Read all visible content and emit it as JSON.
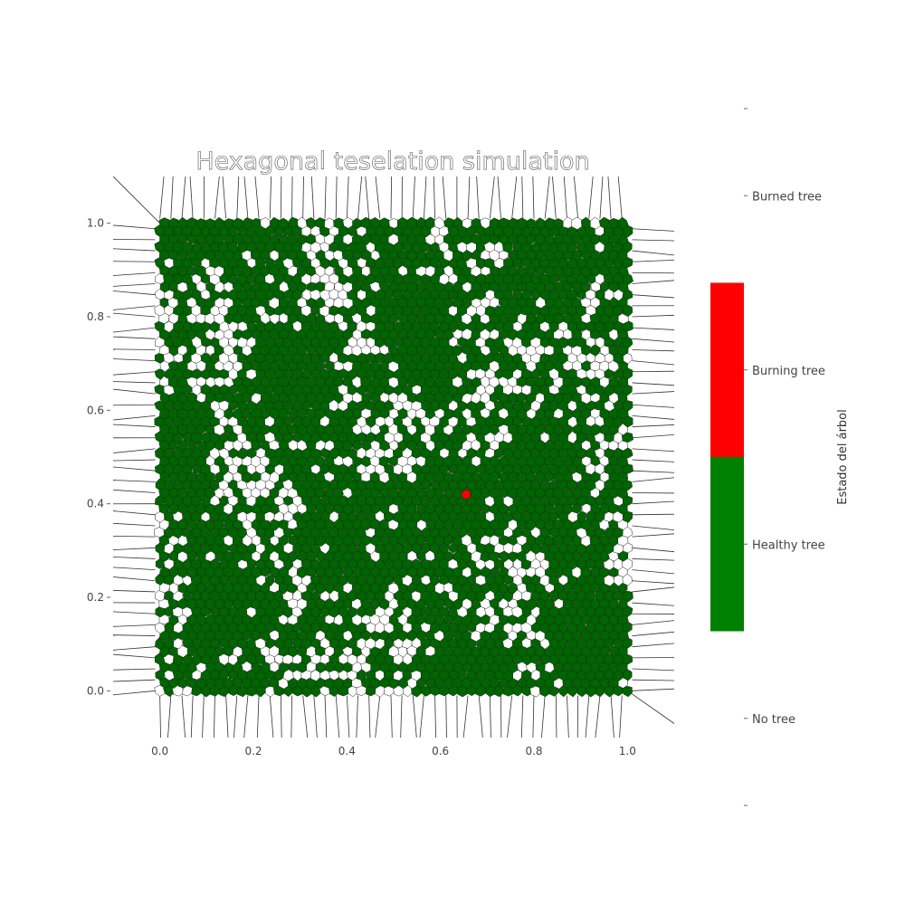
{
  "chart_data": {
    "type": "heatmap",
    "title": "Hexagonal teselation simulation",
    "xlabel": "",
    "ylabel": "",
    "xlim": [
      -0.1,
      1.1
    ],
    "ylim": [
      -0.1,
      1.1
    ],
    "x_ticks": [
      "0.0",
      "0.2",
      "0.4",
      "0.6",
      "0.8",
      "1.0"
    ],
    "y_ticks": [
      "0.0",
      "0.2",
      "0.4",
      "0.6",
      "0.8",
      "1.0"
    ],
    "grid": false,
    "colorbar": {
      "label": "Estado del árbol",
      "categories": [
        {
          "label": "Burned tree",
          "color": "#ffffff"
        },
        {
          "label": "Burning tree",
          "color": "#ff0000"
        },
        {
          "label": "Healthy tree",
          "color": "#008000"
        },
        {
          "label": "No tree",
          "color": "#ffffff"
        }
      ]
    },
    "cell_colors": {
      "healthy": "#006400",
      "empty": "#ffffff",
      "edge": "#222222"
    },
    "approx_cell_counts": {
      "Healthy tree": 2900,
      "No tree": 1100,
      "Burning tree": 1,
      "Burned tree": 0
    }
  }
}
